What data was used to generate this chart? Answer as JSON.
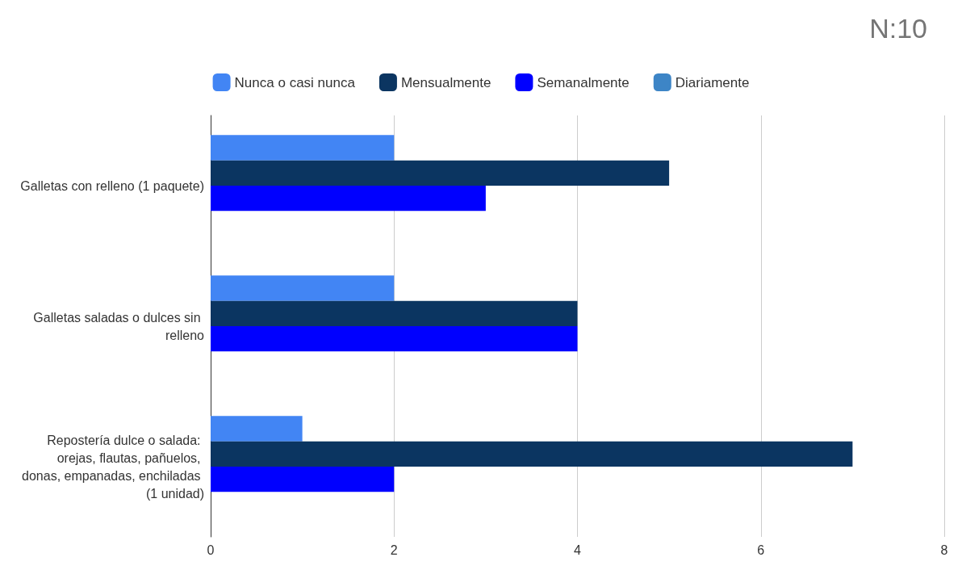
{
  "chart_data": {
    "type": "bar",
    "orientation": "horizontal",
    "title": "N:10",
    "categories": [
      "Galletas con relleno (1 paquete)",
      "Galletas saladas o dulces sin relleno",
      "Repostería dulce o salada: orejas, flautas, pañuelos, donas, empanadas, enchiladas (1 unidad)"
    ],
    "series": [
      {
        "name": "Nunca o casi nunca",
        "color": "#4285f4",
        "values": [
          2,
          2,
          1
        ]
      },
      {
        "name": "Mensualmente",
        "color": "#0b3561",
        "values": [
          5,
          4,
          7
        ]
      },
      {
        "name": "Semanalmente",
        "color": "#0000ff",
        "values": [
          3,
          4,
          2
        ]
      },
      {
        "name": "Diariamente",
        "color": "#3d85c6",
        "values": [
          0,
          0,
          0
        ]
      }
    ],
    "xlim": [
      0,
      8
    ],
    "xticks": [
      0,
      2,
      4,
      6,
      8
    ],
    "grid": "x",
    "legend": "top"
  }
}
